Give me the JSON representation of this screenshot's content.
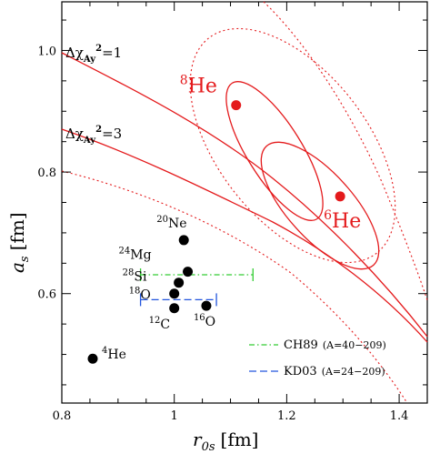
{
  "chart_data": {
    "type": "scatter",
    "title": "",
    "xlabel": "r",
    "xlabel_sub": "0s",
    "xlabel_unit": "[fm]",
    "ylabel": "a",
    "ylabel_sub": "s",
    "ylabel_unit": "[fm]",
    "xlim": [
      0.8,
      1.45
    ],
    "ylim": [
      0.42,
      1.08
    ],
    "xticks": [
      0.8,
      1.0,
      1.2,
      1.4
    ],
    "xtick_labels": [
      "0.8",
      "1",
      "1.2",
      "1.4"
    ],
    "yticks": [
      0.6,
      0.8,
      1.0
    ],
    "ytick_labels": [
      "0.6",
      "0.8",
      "1.0"
    ],
    "grid": false,
    "legend_position": "bottom-right",
    "nuclei_points": [
      {
        "mass": "4",
        "symbol": "He",
        "x": 0.855,
        "y": 0.493
      },
      {
        "mass": "12",
        "symbol": "C",
        "x": 1.0,
        "y": 0.576
      },
      {
        "mass": "16",
        "symbol": "O",
        "x": 1.057,
        "y": 0.58
      },
      {
        "mass": "18",
        "symbol": "O",
        "x": 1.0,
        "y": 0.6
      },
      {
        "mass": "28",
        "symbol": "Si",
        "x": 1.008,
        "y": 0.618
      },
      {
        "mass": "24",
        "symbol": "Mg",
        "x": 1.024,
        "y": 0.636
      },
      {
        "mass": "20",
        "symbol": "Ne",
        "x": 1.017,
        "y": 0.688
      }
    ],
    "helium_points": [
      {
        "mass": "8",
        "symbol": "He",
        "x": 1.11,
        "y": 0.91
      },
      {
        "mass": "6",
        "symbol": "He",
        "x": 1.295,
        "y": 0.76
      }
    ],
    "systematics": [
      {
        "name": "CH89",
        "range": "(A=40−209)",
        "x": 1.055,
        "xerr_low": 0.94,
        "xerr_high": 1.14,
        "y": 0.631,
        "color": "#33cc33",
        "dash": "dash-dot"
      },
      {
        "name": "KD03",
        "range": "(A=24−209)",
        "x": 1.0,
        "xerr_low": 0.94,
        "xerr_high": 1.075,
        "y": 0.59,
        "color": "#2255dd",
        "dash": "dashed"
      }
    ],
    "confidence_regions": [
      {
        "label_prefix": "Δχ",
        "label_sub": "Ay",
        "label_sup": "2",
        "level": "=1",
        "style": "solid"
      },
      {
        "label_prefix": "Δχ",
        "label_sub": "Ay",
        "label_sup": "2",
        "level": "=3",
        "style": "dotted"
      }
    ],
    "curve_color": "#e41a1c"
  }
}
